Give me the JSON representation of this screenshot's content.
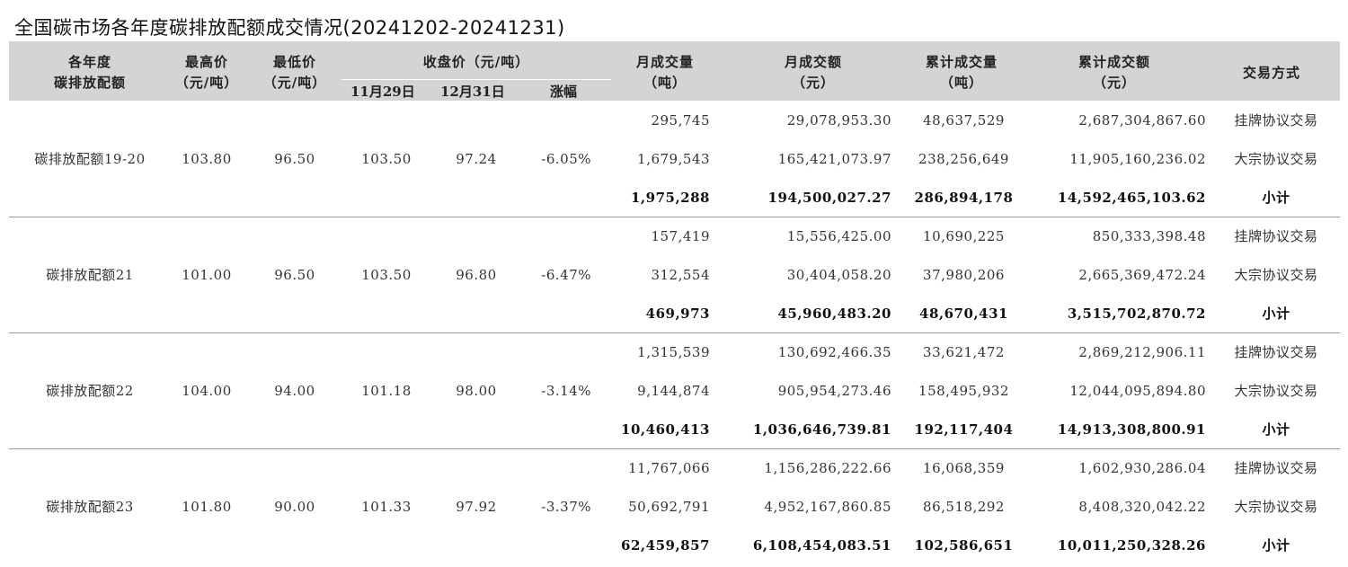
{
  "title": "全国碳市场各年度碳排放配额成交情况(20241202-20241231)",
  "headers": {
    "allowance": [
      "各年度",
      "碳排放配额"
    ],
    "high": [
      "最高价",
      "（元/吨）"
    ],
    "low": [
      "最低价",
      "（元/吨）"
    ],
    "close_group": "收盘价（元/吨）",
    "close_sub": [
      "11月29日",
      "12月31日",
      "涨幅"
    ],
    "month_volume": [
      "月成交量",
      "（吨）"
    ],
    "month_amount": [
      "月成交额",
      "（元）"
    ],
    "cum_volume": [
      "累计成交量",
      "（吨）"
    ],
    "cum_amount": [
      "累计成交额",
      "（元）"
    ],
    "method": "交易方式"
  },
  "groups": [
    {
      "name": "碳排放配额19-20",
      "high": "103.80",
      "low": "96.50",
      "close_1129": "103.50",
      "close_1231": "97.24",
      "change": "-6.05%",
      "rows": [
        {
          "month_volume": "295,745",
          "month_amount": "29,078,953.30",
          "cum_volume": "48,637,529",
          "cum_amount": "2,687,304,867.60",
          "method": "挂牌协议交易"
        },
        {
          "month_volume": "1,679,543",
          "month_amount": "165,421,073.97",
          "cum_volume": "238,256,649",
          "cum_amount": "11,905,160,236.02",
          "method": "大宗协议交易"
        },
        {
          "month_volume": "1,975,288",
          "month_amount": "194,500,027.27",
          "cum_volume": "286,894,178",
          "cum_amount": "14,592,465,103.62",
          "method": "小计"
        }
      ]
    },
    {
      "name": "碳排放配额21",
      "high": "101.00",
      "low": "96.50",
      "close_1129": "103.50",
      "close_1231": "96.80",
      "change": "-6.47%",
      "rows": [
        {
          "month_volume": "157,419",
          "month_amount": "15,556,425.00",
          "cum_volume": "10,690,225",
          "cum_amount": "850,333,398.48",
          "method": "挂牌协议交易"
        },
        {
          "month_volume": "312,554",
          "month_amount": "30,404,058.20",
          "cum_volume": "37,980,206",
          "cum_amount": "2,665,369,472.24",
          "method": "大宗协议交易"
        },
        {
          "month_volume": "469,973",
          "month_amount": "45,960,483.20",
          "cum_volume": "48,670,431",
          "cum_amount": "3,515,702,870.72",
          "method": "小计"
        }
      ]
    },
    {
      "name": "碳排放配额22",
      "high": "104.00",
      "low": "94.00",
      "close_1129": "101.18",
      "close_1231": "98.00",
      "change": "-3.14%",
      "rows": [
        {
          "month_volume": "1,315,539",
          "month_amount": "130,692,466.35",
          "cum_volume": "33,621,472",
          "cum_amount": "2,869,212,906.11",
          "method": "挂牌协议交易"
        },
        {
          "month_volume": "9,144,874",
          "month_amount": "905,954,273.46",
          "cum_volume": "158,495,932",
          "cum_amount": "12,044,095,894.80",
          "method": "大宗协议交易"
        },
        {
          "month_volume": "10,460,413",
          "month_amount": "1,036,646,739.81",
          "cum_volume": "192,117,404",
          "cum_amount": "14,913,308,800.91",
          "method": "小计"
        }
      ]
    },
    {
      "name": "碳排放配额23",
      "high": "101.80",
      "low": "90.00",
      "close_1129": "101.33",
      "close_1231": "97.92",
      "change": "-3.37%",
      "rows": [
        {
          "month_volume": "11,767,066",
          "month_amount": "1,156,286,222.66",
          "cum_volume": "16,068,359",
          "cum_amount": "1,602,930,286.04",
          "method": "挂牌协议交易"
        },
        {
          "month_volume": "50,692,791",
          "month_amount": "4,952,167,860.85",
          "cum_volume": "86,518,292",
          "cum_amount": "8,408,320,042.22",
          "method": "大宗协议交易"
        },
        {
          "month_volume": "62,459,857",
          "month_amount": "6,108,454,083.51",
          "cum_volume": "102,586,651",
          "cum_amount": "10,011,250,328.26",
          "method": "小计"
        }
      ]
    }
  ]
}
